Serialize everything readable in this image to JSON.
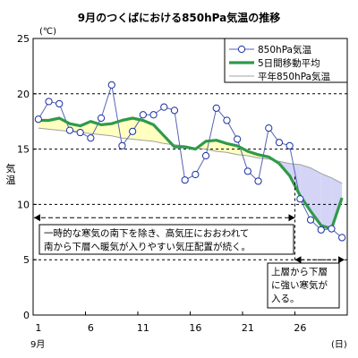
{
  "chart_data": {
    "type": "line",
    "title": "9月のつくばにおける850hPa気温の推移",
    "ylabel": "気温",
    "yunit": "(℃)",
    "xunit": "(日)",
    "xmonth": "9月",
    "xlim": [
      1,
      30
    ],
    "ylim": [
      0,
      25
    ],
    "yticks": [
      0,
      5,
      10,
      15,
      20,
      25
    ],
    "xticks": [
      1,
      6,
      11,
      16,
      21,
      26
    ],
    "grid_y_dashed": [
      5,
      10,
      15,
      20
    ],
    "legend_position": "top-right",
    "x": [
      1,
      2,
      3,
      4,
      5,
      6,
      7,
      8,
      9,
      10,
      11,
      12,
      13,
      14,
      15,
      16,
      17,
      18,
      19,
      20,
      21,
      22,
      23,
      24,
      25,
      26,
      27,
      28,
      29,
      30
    ],
    "series": [
      {
        "name": "850hPa気温",
        "style": "markers",
        "color": "#1a2fa0",
        "values": [
          17.7,
          19.3,
          19.1,
          16.7,
          16.5,
          16.0,
          17.8,
          20.8,
          15.3,
          16.6,
          18.1,
          18.1,
          18.8,
          18.5,
          12.2,
          12.7,
          14.4,
          18.7,
          17.6,
          15.9,
          13.0,
          12.1,
          16.9,
          15.6,
          15.3,
          10.5,
          8.6,
          7.7,
          7.8,
          7.0
        ]
      },
      {
        "name": "5日間移動平均",
        "style": "thick-line",
        "color": "#2f9a4a",
        "values": [
          17.6,
          17.6,
          17.8,
          17.3,
          17.1,
          17.5,
          17.2,
          17.3,
          17.6,
          17.8,
          17.6,
          17.2,
          16.2,
          15.2,
          15.2,
          15.0,
          15.7,
          15.8,
          15.5,
          15.3,
          14.8,
          14.5,
          14.3,
          13.7,
          12.6,
          10.8,
          9.4,
          8.1,
          7.8,
          10.6
        ]
      },
      {
        "name": "平年850hPa気温",
        "style": "thin-line",
        "color": "#a0a0a0",
        "values": [
          16.9,
          16.8,
          16.7,
          16.6,
          16.5,
          16.4,
          16.3,
          16.2,
          16.0,
          15.9,
          15.8,
          15.7,
          15.5,
          15.4,
          15.3,
          15.1,
          15.0,
          14.8,
          14.7,
          14.5,
          14.4,
          14.2,
          14.1,
          13.9,
          13.7,
          13.6,
          13.3,
          12.8,
          12.4,
          11.9
        ]
      }
    ],
    "fill_above_normal_color": "#ffffc0",
    "fill_below_normal_color": "#d4d4f6",
    "annotations": [
      {
        "lines": [
          "一時的な寒気の南下を除き、高気圧におおわれて",
          "南から下層へ暖気が入りやすい気圧配置が続く。"
        ],
        "from_day": 1,
        "to_day": 26,
        "arrow_y": 8.8
      },
      {
        "lines": [
          "上層から下層",
          "に強い寒気が",
          "入る。"
        ],
        "from_day": 26,
        "to_day": 30,
        "arrow_y": 5.0
      }
    ]
  }
}
